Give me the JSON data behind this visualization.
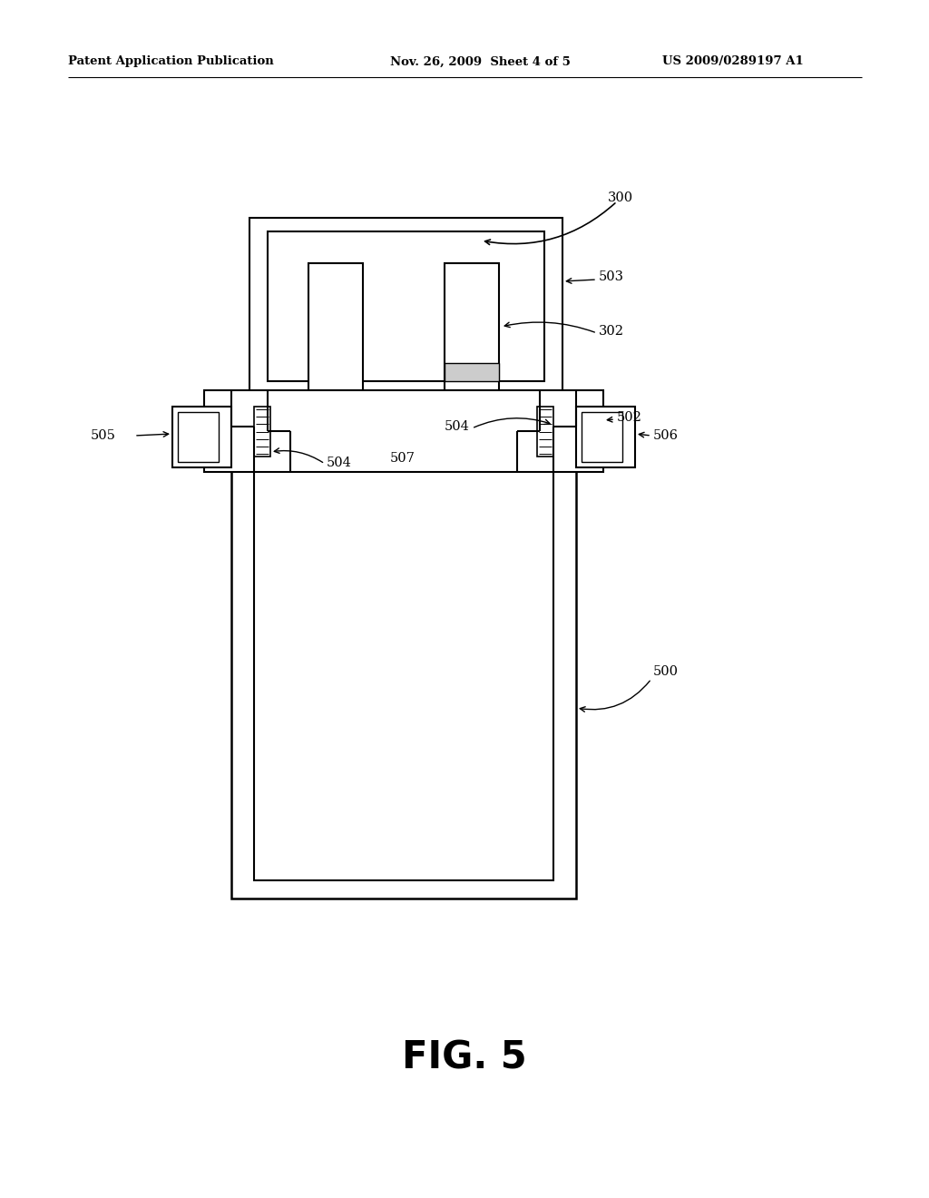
{
  "bg_color": "#ffffff",
  "line_color": "#000000",
  "header_left": "Patent Application Publication",
  "header_mid": "Nov. 26, 2009  Sheet 4 of 5",
  "header_right": "US 2009/0289197 A1",
  "fig_label": "FIG. 5"
}
